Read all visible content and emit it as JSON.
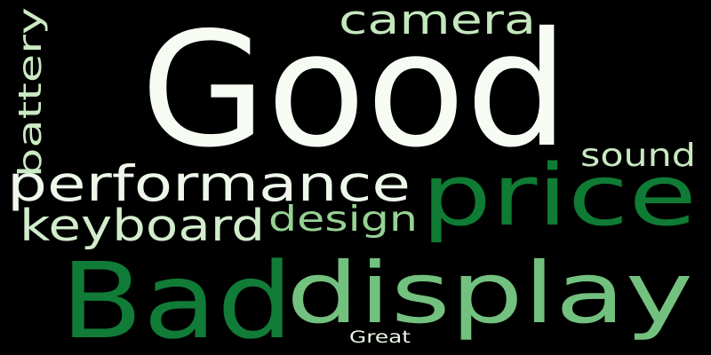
{
  "words": [
    {
      "id": "good",
      "text": "Good",
      "color": "#f6fbf3"
    },
    {
      "id": "bad",
      "text": "Bad",
      "color": "#107c37"
    },
    {
      "id": "display",
      "text": "display",
      "color": "#72c17e"
    },
    {
      "id": "price",
      "text": "price",
      "color": "#0f7b35"
    },
    {
      "id": "performance",
      "text": "performance",
      "color": "#eef8ea"
    },
    {
      "id": "keyboard",
      "text": "keyboard",
      "color": "#d3edcc"
    },
    {
      "id": "camera",
      "text": "camera",
      "color": "#c4e7bd"
    },
    {
      "id": "design",
      "text": "design",
      "color": "#96d293"
    },
    {
      "id": "battery",
      "text": "battery",
      "color": "#cbeac4"
    },
    {
      "id": "sound",
      "text": "sound",
      "color": "#c8e8c1"
    },
    {
      "id": "great",
      "text": "Great",
      "color": "#ecf7e8"
    }
  ]
}
